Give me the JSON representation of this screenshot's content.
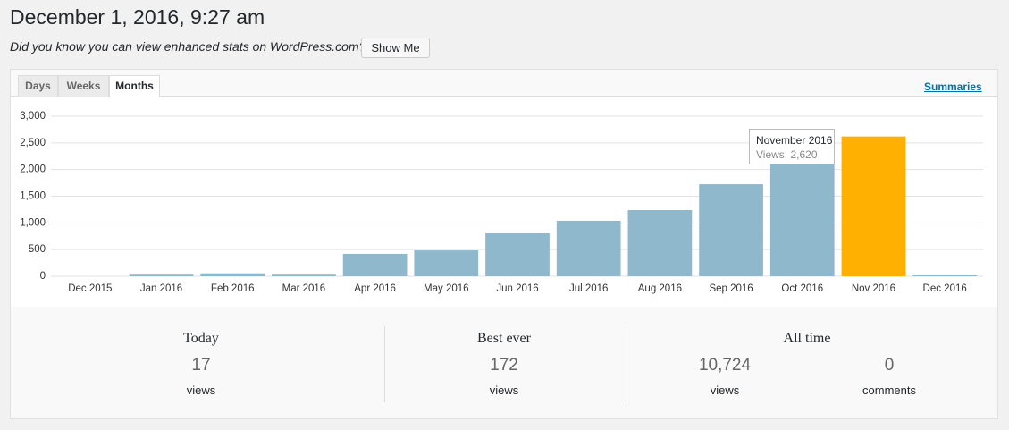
{
  "header": {
    "title": "December 1, 2016, 9:27 am"
  },
  "notice": {
    "text": "Did you know you can view enhanced stats on WordPress.com?",
    "button": "Show Me"
  },
  "tabs": [
    "Days",
    "Weeks",
    "Months"
  ],
  "summaries_link": "Summaries",
  "chart_data": {
    "type": "bar",
    "categories": [
      "Dec 2015",
      "Jan 2016",
      "Feb 2016",
      "Mar 2016",
      "Apr 2016",
      "May 2016",
      "Jun 2016",
      "Jul 2016",
      "Aug 2016",
      "Sep 2016",
      "Oct 2016",
      "Nov 2016",
      "Dec 2016"
    ],
    "values": [
      0,
      30,
      55,
      30,
      420,
      485,
      805,
      1040,
      1240,
      1725,
      2150,
      2620,
      17
    ],
    "colors": [
      "#8fb8cc",
      "#8fb8cc",
      "#8fb8cc",
      "#8fb8cc",
      "#8fb8cc",
      "#8fb8cc",
      "#8fb8cc",
      "#8fb8cc",
      "#8fb8cc",
      "#8fb8cc",
      "#8fb8cc",
      "#ffb000",
      "#8fb8cc"
    ],
    "ylim": [
      0,
      3000
    ],
    "yticks": [
      0,
      500,
      {
        "value": 1000,
        "label": "1,000"
      },
      {
        "value": 1500,
        "label": "1,500"
      },
      {
        "value": 2000,
        "label": "2,000"
      },
      {
        "value": 2500,
        "label": "2,500"
      },
      {
        "value": 3000,
        "label": "3,000"
      }
    ],
    "grid": true,
    "tooltip": {
      "title": "November 2016",
      "text": "Views: 2,620"
    }
  },
  "stats": [
    {
      "label": "Today",
      "value": 17,
      "unit": "views"
    },
    {
      "label": "Best ever",
      "value": 172,
      "unit": "views"
    },
    {
      "label": "All time",
      "items": [
        {
          "value": {
            "value": 10724,
            "label": "10,724"
          },
          "unit": "views"
        },
        {
          "value": 0,
          "unit": "comments"
        }
      ]
    }
  ]
}
